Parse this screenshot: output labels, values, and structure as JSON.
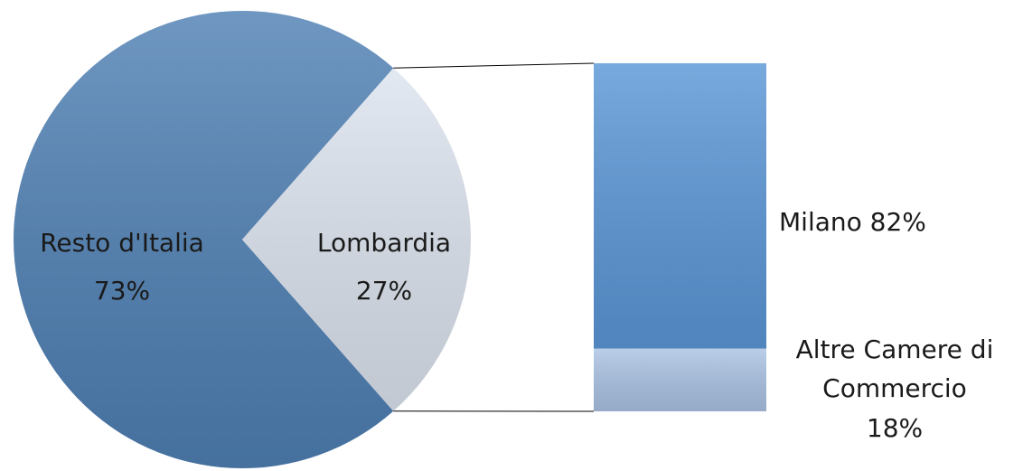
{
  "chart_data": {
    "type": "bar-of-pie",
    "pie": {
      "categories": [
        "Resto d'Italia",
        "Lombardia"
      ],
      "values": [
        73,
        27
      ],
      "value_labels": [
        "73%",
        "27%"
      ],
      "colors": [
        "#4f80b4",
        "#dde4ef"
      ]
    },
    "bar": {
      "categories": [
        "Milano",
        "Altre Camere di Commercio"
      ],
      "values": [
        82,
        18
      ],
      "value_labels": [
        "82%",
        "18%"
      ],
      "colors": [
        "#5b97d7",
        "#abc3e4"
      ]
    }
  }
}
